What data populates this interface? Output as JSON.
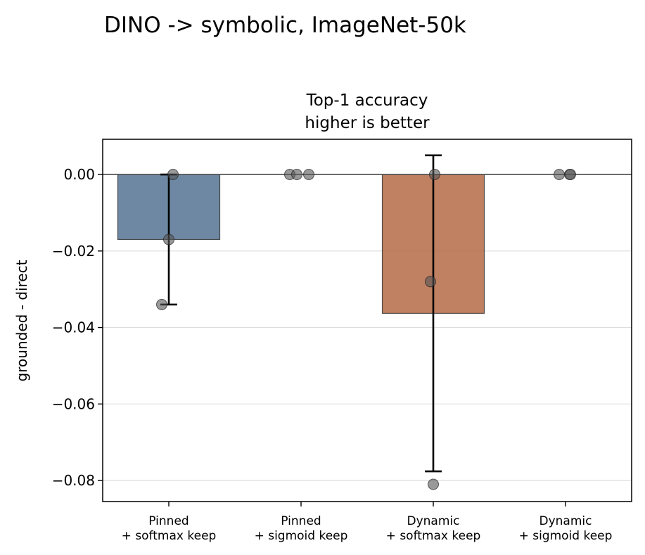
{
  "chart_data": {
    "type": "bar",
    "suptitle": "DINO -> symbolic, ImageNet-50k",
    "title_lines": [
      "Top-1 accuracy",
      "higher is better"
    ],
    "ylabel": "grounded - direct",
    "xlabel": "",
    "categories": [
      [
        "Pinned",
        "+ softmax keep"
      ],
      [
        "Pinned",
        "+ sigmoid keep"
      ],
      [
        "Dynamic",
        "+ softmax keep"
      ],
      [
        "Dynamic",
        "+ sigmoid keep"
      ]
    ],
    "values": [
      -0.017,
      0.0,
      -0.0363,
      0.0
    ],
    "error_bars": [
      {
        "low": -0.034,
        "high": 0.0
      },
      null,
      {
        "low": -0.0776,
        "high": 0.005
      },
      null
    ],
    "points": [
      [
        0.0,
        -0.017,
        -0.034
      ],
      [
        0.0,
        0.0,
        0.0
      ],
      [
        0.0,
        -0.028,
        -0.081
      ],
      [
        0.0,
        0.0,
        0.0
      ]
    ],
    "bar_colors": [
      "#4a6a8d",
      null,
      "#b0603b",
      null
    ],
    "ylim": [
      -0.0855,
      0.0092
    ],
    "yticks": [
      0.0,
      -0.02,
      -0.04,
      -0.06,
      -0.08
    ],
    "ytick_labels": [
      "0.00",
      "−0.02",
      "−0.04",
      "−0.06",
      "−0.08"
    ],
    "grid": "horizontal",
    "reference_line": 0.0
  }
}
